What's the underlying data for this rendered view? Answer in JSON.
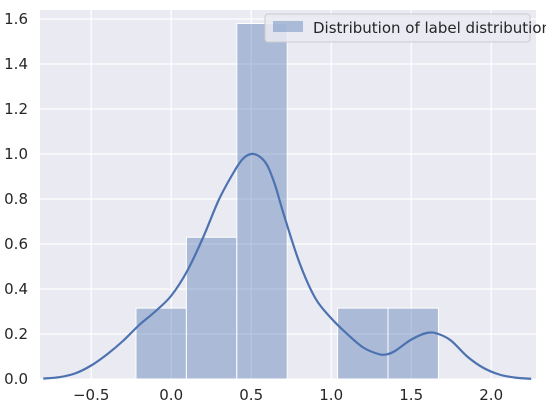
{
  "chart_data": {
    "type": "bar",
    "title": "",
    "xlabel": "",
    "ylabel": "",
    "xlim": [
      -0.82,
      2.28
    ],
    "ylim": [
      0,
      1.64
    ],
    "grid": true,
    "legend_position": "top-right",
    "x_ticks": [
      -0.5,
      0.0,
      0.5,
      1.0,
      1.5,
      2.0
    ],
    "x_tick_labels": [
      "−0.5",
      "0.0",
      "0.5",
      "1.0",
      "1.5",
      "2.0"
    ],
    "y_ticks": [
      0.0,
      0.2,
      0.4,
      0.6,
      0.8,
      1.0,
      1.2,
      1.4,
      1.6
    ],
    "y_tick_labels": [
      "0.0",
      "0.2",
      "0.4",
      "0.6",
      "0.8",
      "1.0",
      "1.2",
      "1.4",
      "1.6"
    ],
    "histogram": {
      "name": "Distribution of label distribution",
      "color": "#4c72b0",
      "bins": [
        {
          "x0": -0.22,
          "x1": 0.095,
          "value": 0.315
        },
        {
          "x0": 0.095,
          "x1": 0.41,
          "value": 0.63
        },
        {
          "x0": 0.41,
          "x1": 0.725,
          "value": 1.58
        },
        {
          "x0": 0.725,
          "x1": 1.04,
          "value": 0.0
        },
        {
          "x0": 1.04,
          "x1": 1.355,
          "value": 0.315
        },
        {
          "x0": 1.355,
          "x1": 1.67,
          "value": 0.315
        }
      ]
    },
    "kde": {
      "color": "#4c72b0",
      "x": [
        -0.8,
        -0.7,
        -0.6,
        -0.5,
        -0.4,
        -0.3,
        -0.2,
        -0.1,
        0.0,
        0.1,
        0.2,
        0.3,
        0.4,
        0.45,
        0.5,
        0.55,
        0.6,
        0.65,
        0.7,
        0.8,
        0.9,
        1.0,
        1.1,
        1.2,
        1.3,
        1.35,
        1.4,
        1.5,
        1.6,
        1.67,
        1.75,
        1.85,
        1.95,
        2.05,
        2.15,
        2.25
      ],
      "y": [
        0.002,
        0.008,
        0.025,
        0.06,
        0.11,
        0.17,
        0.24,
        0.3,
        0.37,
        0.48,
        0.63,
        0.8,
        0.93,
        0.98,
        1.0,
        0.99,
        0.95,
        0.86,
        0.74,
        0.52,
        0.36,
        0.27,
        0.2,
        0.14,
        0.11,
        0.11,
        0.125,
        0.175,
        0.205,
        0.2,
        0.17,
        0.1,
        0.05,
        0.02,
        0.006,
        0.001
      ]
    }
  }
}
